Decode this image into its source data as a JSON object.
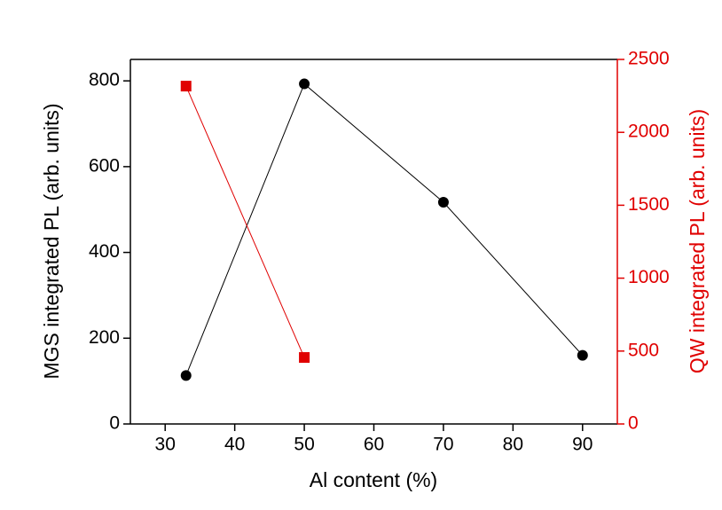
{
  "chart_data": {
    "type": "line",
    "x_label": "Al content (%)",
    "y_label": "MGS integrated PL (arb. units)",
    "y2_label": "QW integrated PL (arb. units)",
    "xlim": [
      25,
      95
    ],
    "xticks": [
      30,
      40,
      50,
      60,
      70,
      80,
      90
    ],
    "ylim": [
      0,
      850
    ],
    "yticks": [
      0,
      200,
      400,
      600,
      800
    ],
    "y2lim": [
      0,
      2500
    ],
    "y2ticks": [
      0,
      500,
      1000,
      1500,
      2000,
      2500
    ],
    "y2color": "#e00000",
    "series": [
      {
        "color": "#000000",
        "marker": "circle",
        "x": [
          33,
          50,
          70,
          90
        ],
        "values": [
          113,
          793,
          517,
          160
        ]
      },
      {
        "color": "#e00000",
        "marker": "square",
        "axis": "y2",
        "x": [
          33,
          50
        ],
        "values": [
          2317,
          456
        ]
      }
    ]
  }
}
